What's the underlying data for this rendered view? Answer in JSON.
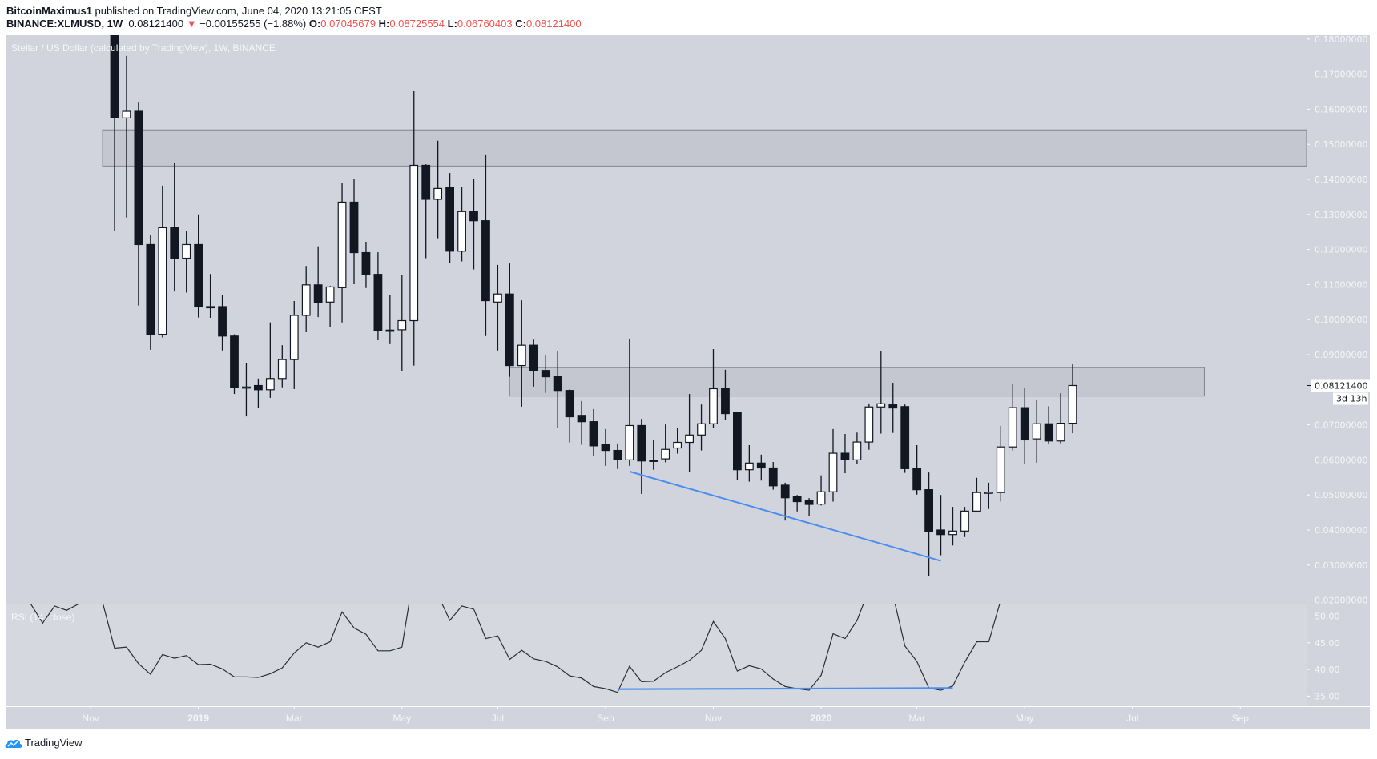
{
  "header": {
    "author": "BitcoinMaximus1",
    "published": "published on TradingView.com, June 04, 2020 13:21:05 CEST",
    "symbol": "BINANCE:XLMUSD, 1W",
    "last": "0.08121400",
    "change": "−0.00155255 (−1.88%)",
    "o_label": "O:",
    "o": "0.07045679",
    "h_label": "H:",
    "h": "0.08725554",
    "l_label": "L:",
    "l": "0.06760403",
    "c_label": "C:",
    "c": "0.08121400"
  },
  "footer": {
    "brand": "TradingView"
  },
  "colors": {
    "background": "#d1d4dc",
    "up_body": "#ffffff",
    "down_body": "#131722",
    "zone": "#c4c7d0",
    "trendline": "#4a8ef0",
    "change_down": "#ef5350"
  },
  "chart_data": [
    {
      "type": "candlestick",
      "title": "Stellar / US Dollar (calculated by TradingView), 1W, BINANCE",
      "interval": "1W",
      "ylim": [
        0.02,
        0.18
      ],
      "yticks": [
        "0.18000000",
        "0.17000000",
        "0.16000000",
        "0.15000000",
        "0.14000000",
        "0.13000000",
        "0.12000000",
        "0.11000000",
        "0.10000000",
        "0.09000000",
        "0.07000000",
        "0.06000000",
        "0.05000000",
        "0.04000000",
        "0.03000000",
        "0.02000000"
      ],
      "xticks": [
        "Nov",
        "2019",
        "Mar",
        "May",
        "Jul",
        "Sep",
        "Nov",
        "2020",
        "Mar",
        "May",
        "Jul",
        "Sep"
      ],
      "last_price_label": "0.08121400",
      "countdown_label": "3d 13h",
      "candles_columns": [
        "week",
        "open",
        "high",
        "low",
        "close"
      ],
      "candles": [
        [
          "2018-11-19",
          0.19,
          0.196,
          0.1254,
          0.1575
        ],
        [
          "2018-11-26",
          0.1575,
          0.1752,
          0.1291,
          0.1594
        ],
        [
          "2018-12-03",
          0.1594,
          0.1619,
          0.104,
          0.1214
        ],
        [
          "2018-12-10",
          0.1214,
          0.1242,
          0.0914,
          0.0958
        ],
        [
          "2018-12-17",
          0.0958,
          0.1382,
          0.0949,
          0.1262
        ],
        [
          "2018-12-24",
          0.1262,
          0.1446,
          0.108,
          0.1175
        ],
        [
          "2018-12-31",
          0.1175,
          0.1252,
          0.1077,
          0.1214
        ],
        [
          "2019-01-07",
          0.1214,
          0.13,
          0.1006,
          0.1036
        ],
        [
          "2019-01-14",
          0.1035,
          0.113,
          0.1005,
          0.1037
        ],
        [
          "2019-01-21",
          0.1037,
          0.1071,
          0.0912,
          0.0953
        ],
        [
          "2019-01-28",
          0.0953,
          0.0958,
          0.0788,
          0.0807
        ],
        [
          "2019-02-04",
          0.0807,
          0.0875,
          0.0724,
          0.0808
        ],
        [
          "2019-02-11",
          0.0812,
          0.0832,
          0.0747,
          0.08
        ],
        [
          "2019-02-18",
          0.08,
          0.0992,
          0.0777,
          0.0832
        ],
        [
          "2019-02-25",
          0.0832,
          0.0927,
          0.0807,
          0.0886
        ],
        [
          "2019-03-04",
          0.0886,
          0.1053,
          0.0802,
          0.1012
        ],
        [
          "2019-03-11",
          0.1012,
          0.1153,
          0.0964,
          0.1099
        ],
        [
          "2019-03-18",
          0.1099,
          0.1209,
          0.1007,
          0.1049
        ],
        [
          "2019-03-25",
          0.105,
          0.1096,
          0.0978,
          0.1093
        ],
        [
          "2019-04-01",
          0.1091,
          0.1391,
          0.0992,
          0.1335
        ],
        [
          "2019-04-08",
          0.1335,
          0.14,
          0.1101,
          0.1191
        ],
        [
          "2019-04-15",
          0.1191,
          0.1222,
          0.109,
          0.1129
        ],
        [
          "2019-04-22",
          0.1129,
          0.1192,
          0.0941,
          0.0969
        ],
        [
          "2019-04-29",
          0.097,
          0.1069,
          0.093,
          0.0967
        ],
        [
          "2019-05-06",
          0.0971,
          0.1128,
          0.0853,
          0.0997
        ],
        [
          "2019-05-13",
          0.0997,
          0.1651,
          0.0869,
          0.144
        ],
        [
          "2019-05-20",
          0.144,
          0.1443,
          0.1175,
          0.1343
        ],
        [
          "2019-05-27",
          0.1343,
          0.151,
          0.1232,
          0.1374
        ],
        [
          "2019-06-03",
          0.1376,
          0.1418,
          0.1161,
          0.1195
        ],
        [
          "2019-06-10",
          0.1195,
          0.1379,
          0.1166,
          0.1308
        ],
        [
          "2019-06-17",
          0.1308,
          0.1402,
          0.1143,
          0.1282
        ],
        [
          "2019-06-24",
          0.1282,
          0.1471,
          0.0953,
          0.1054
        ],
        [
          "2019-07-01",
          0.105,
          0.1156,
          0.0912,
          0.1073
        ],
        [
          "2019-07-08",
          0.1073,
          0.116,
          0.0837,
          0.0869
        ],
        [
          "2019-07-15",
          0.0869,
          0.1055,
          0.0752,
          0.0927
        ],
        [
          "2019-07-22",
          0.0927,
          0.0943,
          0.0809,
          0.0855
        ],
        [
          "2019-07-29",
          0.0855,
          0.09,
          0.0791,
          0.0837
        ],
        [
          "2019-08-05",
          0.0837,
          0.0909,
          0.0691,
          0.0798
        ],
        [
          "2019-08-12",
          0.0798,
          0.0801,
          0.065,
          0.0723
        ],
        [
          "2019-08-19",
          0.0727,
          0.0768,
          0.0643,
          0.0709
        ],
        [
          "2019-08-26",
          0.0709,
          0.0745,
          0.061,
          0.064
        ],
        [
          "2019-09-02",
          0.0643,
          0.0688,
          0.0583,
          0.0627
        ],
        [
          "2019-09-09",
          0.0627,
          0.0647,
          0.0574,
          0.06
        ],
        [
          "2019-09-16",
          0.06,
          0.0946,
          0.0583,
          0.0698
        ],
        [
          "2019-09-23",
          0.0698,
          0.0717,
          0.0503,
          0.0597
        ],
        [
          "2019-09-30",
          0.0599,
          0.0658,
          0.0572,
          0.0596
        ],
        [
          "2019-10-07",
          0.0603,
          0.0701,
          0.0593,
          0.063
        ],
        [
          "2019-10-14",
          0.0634,
          0.0692,
          0.0618,
          0.065
        ],
        [
          "2019-10-21",
          0.065,
          0.0788,
          0.0565,
          0.0671
        ],
        [
          "2019-10-28",
          0.0671,
          0.0758,
          0.0627,
          0.0703
        ],
        [
          "2019-11-04",
          0.0703,
          0.0916,
          0.0691,
          0.0803
        ],
        [
          "2019-11-11",
          0.0803,
          0.0857,
          0.0714,
          0.0732
        ],
        [
          "2019-11-18",
          0.0735,
          0.0737,
          0.0542,
          0.0572
        ],
        [
          "2019-11-25",
          0.0572,
          0.0642,
          0.0538,
          0.0591
        ],
        [
          "2019-12-02",
          0.0591,
          0.0615,
          0.0541,
          0.0577
        ],
        [
          "2019-12-09",
          0.0577,
          0.0594,
          0.0515,
          0.0526
        ],
        [
          "2019-12-16",
          0.0528,
          0.0535,
          0.0427,
          0.0492
        ],
        [
          "2019-12-23",
          0.0496,
          0.05,
          0.0453,
          0.0481
        ],
        [
          "2019-12-30",
          0.0485,
          0.0491,
          0.0439,
          0.0473
        ],
        [
          "2020-01-06",
          0.0474,
          0.0556,
          0.047,
          0.0509
        ],
        [
          "2020-01-13",
          0.0509,
          0.0688,
          0.0481,
          0.0619
        ],
        [
          "2020-01-20",
          0.0619,
          0.0674,
          0.0562,
          0.06
        ],
        [
          "2020-01-27",
          0.06,
          0.0678,
          0.0588,
          0.0651
        ],
        [
          "2020-02-03",
          0.0651,
          0.0761,
          0.0629,
          0.0751
        ],
        [
          "2020-02-10",
          0.0751,
          0.0909,
          0.0675,
          0.076
        ],
        [
          "2020-02-17",
          0.0757,
          0.082,
          0.0677,
          0.0748
        ],
        [
          "2020-02-24",
          0.0752,
          0.0758,
          0.0563,
          0.0575
        ],
        [
          "2020-03-02",
          0.0575,
          0.0642,
          0.0501,
          0.0515
        ],
        [
          "2020-03-09",
          0.0515,
          0.0564,
          0.0268,
          0.0396
        ],
        [
          "2020-03-16",
          0.04,
          0.05,
          0.0328,
          0.0387
        ],
        [
          "2020-03-23",
          0.0387,
          0.0466,
          0.0356,
          0.0397
        ],
        [
          "2020-03-30",
          0.0397,
          0.0466,
          0.038,
          0.0454
        ],
        [
          "2020-04-06",
          0.0454,
          0.0549,
          0.0453,
          0.0507
        ],
        [
          "2020-04-13",
          0.0506,
          0.0535,
          0.046,
          0.0508
        ],
        [
          "2020-04-20",
          0.0507,
          0.0697,
          0.0481,
          0.0637
        ],
        [
          "2020-04-27",
          0.0637,
          0.0816,
          0.0627,
          0.0749
        ],
        [
          "2020-05-04",
          0.0749,
          0.0806,
          0.0587,
          0.0657
        ],
        [
          "2020-05-11",
          0.066,
          0.0771,
          0.0592,
          0.0703
        ],
        [
          "2020-05-18",
          0.0703,
          0.0753,
          0.0645,
          0.0654
        ],
        [
          "2020-05-25",
          0.0654,
          0.079,
          0.0647,
          0.07045679
        ],
        [
          "2020-06-01",
          0.07045679,
          0.08725554,
          0.06760403,
          0.081214
        ]
      ],
      "zones": [
        {
          "from": "2018-11-12",
          "to": "open-right",
          "low": 0.1438,
          "high": 0.1541
        },
        {
          "from": "2019-07-08",
          "to": "2020-08-17",
          "low": 0.0782,
          "high": 0.0863
        }
      ],
      "trendline": {
        "from": [
          "2019-09-16",
          0.0567
        ],
        "to": [
          "2020-03-16",
          0.0312
        ],
        "color": "#4a8ef0"
      }
    },
    {
      "type": "line",
      "title": "RSI (14, close)",
      "ylim": [
        33,
        52.4
      ],
      "yticks": [
        "50.00",
        "45.00",
        "40.00",
        "35.00"
      ],
      "values_end_aligned_with_candles": [
        52.3,
        48.7,
        51.9,
        51.1,
        52.3,
        56,
        52.6,
        44.0,
        44.2,
        41.1,
        39.1,
        42.8,
        42.1,
        42.6,
        40.9,
        41.0,
        40.1,
        38.6,
        38.6,
        38.5,
        39.2,
        40.3,
        43.1,
        45.0,
        44.2,
        45.2,
        50.8,
        47.8,
        46.6,
        43.5,
        43.5,
        44.2,
        58,
        57,
        54,
        49.2,
        51.9,
        51.3,
        45.8,
        46.3,
        41.9,
        43.6,
        42.0,
        41.5,
        40.5,
        38.8,
        38.4,
        36.8,
        36.4,
        35.7,
        40.6,
        37.7,
        37.8,
        39.4,
        40.5,
        41.7,
        43.6,
        49.0,
        45.8,
        39.7,
        40.7,
        40.1,
        38.2,
        36.8,
        36.4,
        36.1,
        38.9,
        46.7,
        45.8,
        49.2,
        55,
        56,
        54,
        44.4,
        41.5,
        36.5,
        36.1,
        36.9,
        41.4,
        45.2,
        45.2,
        53,
        58,
        55,
        57,
        55,
        58,
        61
      ],
      "trendline": {
        "from": [
          "2019-09-09",
          36.3
        ],
        "to": [
          "2020-03-23",
          36.5
        ],
        "color": "#4a8ef0"
      }
    }
  ]
}
